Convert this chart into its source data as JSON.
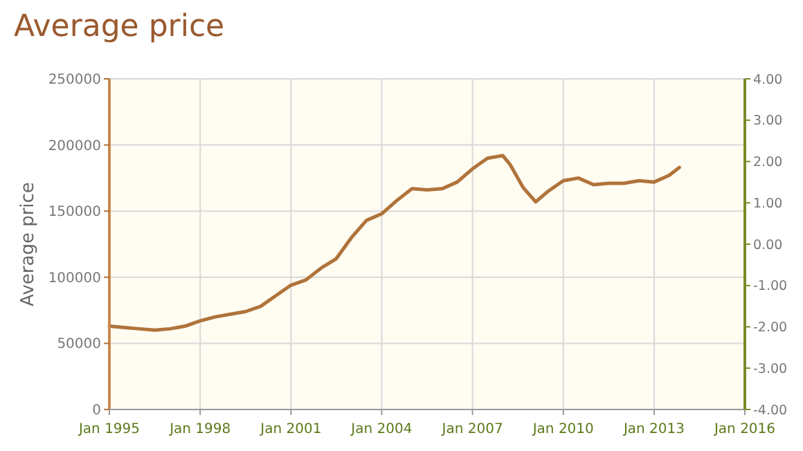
{
  "chart_data": {
    "type": "line",
    "title": "Average price",
    "ylabel": "Average price",
    "x": [
      "1995-01",
      "1995-07",
      "1996-01",
      "1996-07",
      "1997-01",
      "1997-07",
      "1998-01",
      "1998-07",
      "1999-01",
      "1999-07",
      "2000-01",
      "2000-07",
      "2001-01",
      "2001-07",
      "2002-01",
      "2002-07",
      "2003-01",
      "2003-07",
      "2004-01",
      "2004-07",
      "2005-01",
      "2005-07",
      "2006-01",
      "2006-07",
      "2007-01",
      "2007-07",
      "2008-01",
      "2008-04",
      "2008-09",
      "2009-02",
      "2009-07",
      "2010-01",
      "2010-07",
      "2011-01",
      "2011-07",
      "2012-01",
      "2012-07",
      "2013-01",
      "2013-07",
      "2013-11"
    ],
    "series": [
      {
        "color": "#b0733a",
        "values": [
          63000,
          62000,
          61000,
          60000,
          61000,
          63000,
          67000,
          70000,
          72000,
          74000,
          78000,
          86000,
          94000,
          98000,
          107000,
          114000,
          130000,
          143000,
          148000,
          158000,
          167000,
          166000,
          167000,
          172000,
          182000,
          190000,
          192000,
          185000,
          168000,
          157000,
          165000,
          173000,
          175000,
          170000,
          171000,
          171000,
          173000,
          172000,
          177000,
          183000
        ]
      }
    ],
    "xlim": [
      "1995-01",
      "2016-01"
    ],
    "xticks": [
      {
        "value": "1995-01",
        "label": "Jan 1995"
      },
      {
        "value": "1998-01",
        "label": "Jan 1998"
      },
      {
        "value": "2001-01",
        "label": "Jan 2001"
      },
      {
        "value": "2004-01",
        "label": "Jan 2004"
      },
      {
        "value": "2007-01",
        "label": "Jan 2007"
      },
      {
        "value": "2010-01",
        "label": "Jan 2010"
      },
      {
        "value": "2013-01",
        "label": "Jan 2013"
      },
      {
        "value": "2016-01",
        "label": "Jan 2016"
      }
    ],
    "ylim": [
      0,
      250000
    ],
    "yticks": [
      0,
      50000,
      100000,
      150000,
      200000,
      250000
    ],
    "y2lim": [
      -4,
      4
    ],
    "y2ticks": [
      {
        "value": -4,
        "label": "-4.00"
      },
      {
        "value": -3,
        "label": "-3.00"
      },
      {
        "value": -2,
        "label": "-2.00"
      },
      {
        "value": -1,
        "label": "-1.00"
      },
      {
        "value": 0,
        "label": "0.00"
      },
      {
        "value": 1,
        "label": "1.00"
      },
      {
        "value": 2,
        "label": "2.00"
      },
      {
        "value": 3,
        "label": "3.00"
      },
      {
        "value": 4,
        "label": "4.00"
      }
    ],
    "grid": true,
    "marker": "none",
    "line_style": "solid"
  }
}
